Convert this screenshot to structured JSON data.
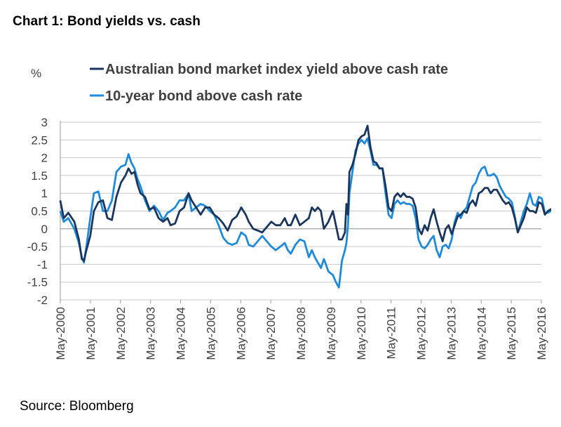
{
  "title": "Chart 1: Bond yields vs. cash",
  "source": "Source: Bloomberg",
  "chart_data": {
    "type": "line",
    "ylabel": "%",
    "xlabel": "",
    "ylim": [
      -2,
      3
    ],
    "yticks": [
      "3",
      "2.5",
      "2",
      "1.5",
      "1",
      "0.5",
      "0",
      "-0.5",
      "-1",
      "-1.5",
      "-2"
    ],
    "ytick_values": [
      3,
      2.5,
      2,
      1.5,
      1,
      0.5,
      0,
      -0.5,
      -1,
      -1.5,
      -2
    ],
    "xlim": [
      2000.333,
      2016.333
    ],
    "xticks": [
      "May-2000",
      "May-2001",
      "May-2002",
      "May-2003",
      "May-2004",
      "May-2005",
      "May-2006",
      "May-2007",
      "May-2008",
      "May-2009",
      "May-2010",
      "May-2011",
      "May-2012",
      "May-2013",
      "May-2014",
      "May-2015",
      "May-2016"
    ],
    "xtick_values": [
      2000.333,
      2001.333,
      2002.333,
      2003.333,
      2004.333,
      2005.333,
      2006.333,
      2007.333,
      2008.333,
      2009.333,
      2010.333,
      2011.333,
      2012.333,
      2013.333,
      2014.333,
      2015.333,
      2016.333
    ],
    "grid": "horizontal",
    "legend_position": "top-left",
    "series": [
      {
        "name": "Australian bond market index yield above cash rate",
        "color": "#1b365d",
        "points": [
          [
            2000.33,
            0.8
          ],
          [
            2000.45,
            0.3
          ],
          [
            2000.6,
            0.45
          ],
          [
            2000.8,
            0.2
          ],
          [
            2000.95,
            -0.3
          ],
          [
            2001.05,
            -0.85
          ],
          [
            2001.12,
            -0.9
          ],
          [
            2001.2,
            -0.6
          ],
          [
            2001.33,
            -0.2
          ],
          [
            2001.45,
            0.5
          ],
          [
            2001.6,
            0.75
          ],
          [
            2001.75,
            0.8
          ],
          [
            2001.9,
            0.3
          ],
          [
            2002.05,
            0.25
          ],
          [
            2002.2,
            0.9
          ],
          [
            2002.35,
            1.3
          ],
          [
            2002.5,
            1.5
          ],
          [
            2002.6,
            1.7
          ],
          [
            2002.7,
            1.55
          ],
          [
            2002.8,
            1.6
          ],
          [
            2002.9,
            1.25
          ],
          [
            2003.0,
            1.0
          ],
          [
            2003.15,
            0.9
          ],
          [
            2003.3,
            0.55
          ],
          [
            2003.45,
            0.6
          ],
          [
            2003.6,
            0.3
          ],
          [
            2003.75,
            0.2
          ],
          [
            2003.9,
            0.3
          ],
          [
            2004.0,
            0.1
          ],
          [
            2004.15,
            0.15
          ],
          [
            2004.3,
            0.5
          ],
          [
            2004.45,
            0.6
          ],
          [
            2004.6,
            1.0
          ],
          [
            2004.7,
            0.8
          ],
          [
            2004.85,
            0.6
          ],
          [
            2005.0,
            0.4
          ],
          [
            2005.15,
            0.6
          ],
          [
            2005.3,
            0.6
          ],
          [
            2005.45,
            0.4
          ],
          [
            2005.6,
            0.3
          ],
          [
            2005.75,
            0.15
          ],
          [
            2005.9,
            -0.05
          ],
          [
            2006.05,
            0.25
          ],
          [
            2006.2,
            0.35
          ],
          [
            2006.35,
            0.6
          ],
          [
            2006.5,
            0.4
          ],
          [
            2006.6,
            0.2
          ],
          [
            2006.75,
            0.0
          ],
          [
            2006.9,
            -0.05
          ],
          [
            2007.05,
            -0.1
          ],
          [
            2007.2,
            0.05
          ],
          [
            2007.35,
            0.2
          ],
          [
            2007.5,
            0.1
          ],
          [
            2007.65,
            0.1
          ],
          [
            2007.8,
            0.3
          ],
          [
            2007.9,
            0.1
          ],
          [
            2008.0,
            0.1
          ],
          [
            2008.15,
            0.4
          ],
          [
            2008.3,
            0.1
          ],
          [
            2008.45,
            0.2
          ],
          [
            2008.6,
            0.3
          ],
          [
            2008.7,
            0.6
          ],
          [
            2008.8,
            0.5
          ],
          [
            2008.9,
            0.6
          ],
          [
            2009.0,
            0.5
          ],
          [
            2009.1,
            0.0
          ],
          [
            2009.25,
            0.2
          ],
          [
            2009.4,
            0.5
          ],
          [
            2009.5,
            0.1
          ],
          [
            2009.6,
            -0.3
          ],
          [
            2009.7,
            -0.3
          ],
          [
            2009.8,
            -0.1
          ],
          [
            2009.85,
            0.7
          ],
          [
            2009.9,
            0.4
          ],
          [
            2009.95,
            1.6
          ],
          [
            2010.05,
            1.8
          ],
          [
            2010.15,
            2.1
          ],
          [
            2010.25,
            2.5
          ],
          [
            2010.35,
            2.6
          ],
          [
            2010.45,
            2.65
          ],
          [
            2010.55,
            2.9
          ],
          [
            2010.65,
            2.3
          ],
          [
            2010.75,
            1.9
          ],
          [
            2010.85,
            1.85
          ],
          [
            2010.95,
            1.7
          ],
          [
            2011.05,
            1.7
          ],
          [
            2011.15,
            1.2
          ],
          [
            2011.25,
            0.6
          ],
          [
            2011.35,
            0.5
          ],
          [
            2011.45,
            0.9
          ],
          [
            2011.55,
            1.0
          ],
          [
            2011.65,
            0.9
          ],
          [
            2011.75,
            1.0
          ],
          [
            2011.85,
            0.9
          ],
          [
            2011.95,
            0.9
          ],
          [
            2012.05,
            0.85
          ],
          [
            2012.15,
            0.6
          ],
          [
            2012.25,
            0.0
          ],
          [
            2012.35,
            -0.15
          ],
          [
            2012.45,
            0.1
          ],
          [
            2012.55,
            -0.05
          ],
          [
            2012.65,
            0.3
          ],
          [
            2012.75,
            0.55
          ],
          [
            2012.85,
            0.2
          ],
          [
            2012.95,
            -0.1
          ],
          [
            2013.05,
            -0.35
          ],
          [
            2013.15,
            0.0
          ],
          [
            2013.25,
            0.1
          ],
          [
            2013.35,
            -0.15
          ],
          [
            2013.45,
            0.1
          ],
          [
            2013.55,
            0.35
          ],
          [
            2013.65,
            0.4
          ],
          [
            2013.75,
            0.5
          ],
          [
            2013.85,
            0.45
          ],
          [
            2013.95,
            0.7
          ],
          [
            2014.05,
            0.8
          ],
          [
            2014.15,
            0.65
          ],
          [
            2014.25,
            1.0
          ],
          [
            2014.35,
            1.05
          ],
          [
            2014.45,
            1.15
          ],
          [
            2014.55,
            1.15
          ],
          [
            2014.65,
            1.0
          ],
          [
            2014.75,
            1.1
          ],
          [
            2014.85,
            1.1
          ],
          [
            2014.95,
            0.95
          ],
          [
            2015.05,
            0.8
          ],
          [
            2015.15,
            0.7
          ],
          [
            2015.25,
            0.75
          ],
          [
            2015.35,
            0.6
          ],
          [
            2015.45,
            0.3
          ],
          [
            2015.55,
            -0.1
          ],
          [
            2015.65,
            0.1
          ],
          [
            2015.75,
            0.3
          ],
          [
            2015.85,
            0.6
          ],
          [
            2015.95,
            0.5
          ],
          [
            2016.05,
            0.5
          ],
          [
            2016.15,
            0.45
          ],
          [
            2016.25,
            0.75
          ],
          [
            2016.35,
            0.7
          ],
          [
            2016.45,
            0.4
          ],
          [
            2016.55,
            0.5
          ],
          [
            2016.65,
            0.55
          ],
          [
            2016.75,
            0.5
          ],
          [
            2016.85,
            0.5
          ]
        ]
      },
      {
        "name": "10-year bond above cash rate",
        "color": "#1f8ad8",
        "points": [
          [
            2000.33,
            0.5
          ],
          [
            2000.45,
            0.2
          ],
          [
            2000.6,
            0.3
          ],
          [
            2000.8,
            0.0
          ],
          [
            2000.95,
            -0.4
          ],
          [
            2001.05,
            -0.8
          ],
          [
            2001.12,
            -0.95
          ],
          [
            2001.2,
            -0.5
          ],
          [
            2001.33,
            0.3
          ],
          [
            2001.45,
            1.0
          ],
          [
            2001.6,
            1.05
          ],
          [
            2001.75,
            0.5
          ],
          [
            2001.9,
            0.5
          ],
          [
            2002.05,
            0.8
          ],
          [
            2002.2,
            1.6
          ],
          [
            2002.35,
            1.75
          ],
          [
            2002.5,
            1.8
          ],
          [
            2002.6,
            2.1
          ],
          [
            2002.7,
            1.85
          ],
          [
            2002.8,
            1.7
          ],
          [
            2002.9,
            1.4
          ],
          [
            2003.0,
            1.2
          ],
          [
            2003.15,
            0.8
          ],
          [
            2003.3,
            0.5
          ],
          [
            2003.45,
            0.65
          ],
          [
            2003.6,
            0.5
          ],
          [
            2003.75,
            0.25
          ],
          [
            2003.9,
            0.45
          ],
          [
            2004.0,
            0.5
          ],
          [
            2004.15,
            0.6
          ],
          [
            2004.3,
            0.8
          ],
          [
            2004.45,
            0.8
          ],
          [
            2004.6,
            1.0
          ],
          [
            2004.7,
            0.5
          ],
          [
            2004.85,
            0.6
          ],
          [
            2005.0,
            0.7
          ],
          [
            2005.15,
            0.65
          ],
          [
            2005.3,
            0.5
          ],
          [
            2005.45,
            0.4
          ],
          [
            2005.6,
            0.1
          ],
          [
            2005.75,
            -0.25
          ],
          [
            2005.9,
            -0.4
          ],
          [
            2006.05,
            -0.45
          ],
          [
            2006.2,
            -0.4
          ],
          [
            2006.35,
            -0.1
          ],
          [
            2006.5,
            -0.2
          ],
          [
            2006.6,
            -0.45
          ],
          [
            2006.75,
            -0.5
          ],
          [
            2006.9,
            -0.35
          ],
          [
            2007.05,
            -0.2
          ],
          [
            2007.2,
            -0.35
          ],
          [
            2007.35,
            -0.5
          ],
          [
            2007.5,
            -0.6
          ],
          [
            2007.65,
            -0.5
          ],
          [
            2007.8,
            -0.4
          ],
          [
            2007.9,
            -0.6
          ],
          [
            2008.0,
            -0.7
          ],
          [
            2008.15,
            -0.45
          ],
          [
            2008.3,
            -0.3
          ],
          [
            2008.45,
            -0.35
          ],
          [
            2008.6,
            -0.8
          ],
          [
            2008.7,
            -0.6
          ],
          [
            2008.8,
            -0.8
          ],
          [
            2008.9,
            -0.95
          ],
          [
            2009.0,
            -1.1
          ],
          [
            2009.1,
            -0.85
          ],
          [
            2009.25,
            -1.2
          ],
          [
            2009.4,
            -1.3
          ],
          [
            2009.5,
            -1.5
          ],
          [
            2009.6,
            -1.65
          ],
          [
            2009.7,
            -0.9
          ],
          [
            2009.8,
            -0.6
          ],
          [
            2009.85,
            -0.4
          ],
          [
            2009.9,
            0.1
          ],
          [
            2009.95,
            1.0
          ],
          [
            2010.05,
            1.6
          ],
          [
            2010.15,
            2.2
          ],
          [
            2010.25,
            2.4
          ],
          [
            2010.35,
            2.5
          ],
          [
            2010.45,
            2.4
          ],
          [
            2010.55,
            2.55
          ],
          [
            2010.65,
            2.2
          ],
          [
            2010.75,
            1.8
          ],
          [
            2010.85,
            1.8
          ],
          [
            2010.95,
            1.7
          ],
          [
            2011.05,
            1.7
          ],
          [
            2011.15,
            1.0
          ],
          [
            2011.25,
            0.4
          ],
          [
            2011.35,
            0.3
          ],
          [
            2011.45,
            0.7
          ],
          [
            2011.55,
            0.8
          ],
          [
            2011.65,
            0.7
          ],
          [
            2011.75,
            0.75
          ],
          [
            2011.85,
            0.7
          ],
          [
            2011.95,
            0.7
          ],
          [
            2012.05,
            0.65
          ],
          [
            2012.15,
            0.3
          ],
          [
            2012.25,
            -0.3
          ],
          [
            2012.35,
            -0.5
          ],
          [
            2012.45,
            -0.55
          ],
          [
            2012.55,
            -0.45
          ],
          [
            2012.65,
            -0.3
          ],
          [
            2012.75,
            -0.2
          ],
          [
            2012.85,
            -0.6
          ],
          [
            2012.95,
            -0.8
          ],
          [
            2013.05,
            -0.5
          ],
          [
            2013.15,
            -0.45
          ],
          [
            2013.25,
            -0.55
          ],
          [
            2013.35,
            -0.3
          ],
          [
            2013.45,
            0.2
          ],
          [
            2013.55,
            0.45
          ],
          [
            2013.65,
            0.3
          ],
          [
            2013.75,
            0.5
          ],
          [
            2013.85,
            0.6
          ],
          [
            2013.95,
            0.9
          ],
          [
            2014.05,
            1.2
          ],
          [
            2014.15,
            1.3
          ],
          [
            2014.25,
            1.55
          ],
          [
            2014.35,
            1.7
          ],
          [
            2014.45,
            1.75
          ],
          [
            2014.55,
            1.5
          ],
          [
            2014.65,
            1.5
          ],
          [
            2014.75,
            1.55
          ],
          [
            2014.85,
            1.45
          ],
          [
            2014.95,
            1.2
          ],
          [
            2015.05,
            1.05
          ],
          [
            2015.15,
            0.9
          ],
          [
            2015.25,
            0.85
          ],
          [
            2015.35,
            0.75
          ],
          [
            2015.45,
            0.35
          ],
          [
            2015.55,
            -0.1
          ],
          [
            2015.65,
            0.2
          ],
          [
            2015.75,
            0.5
          ],
          [
            2015.85,
            0.7
          ],
          [
            2015.95,
            1.0
          ],
          [
            2016.05,
            0.7
          ],
          [
            2016.15,
            0.65
          ],
          [
            2016.25,
            0.9
          ],
          [
            2016.35,
            0.85
          ],
          [
            2016.45,
            0.45
          ],
          [
            2016.55,
            0.45
          ],
          [
            2016.65,
            0.5
          ],
          [
            2016.75,
            0.55
          ],
          [
            2016.85,
            0.55
          ]
        ]
      }
    ]
  }
}
